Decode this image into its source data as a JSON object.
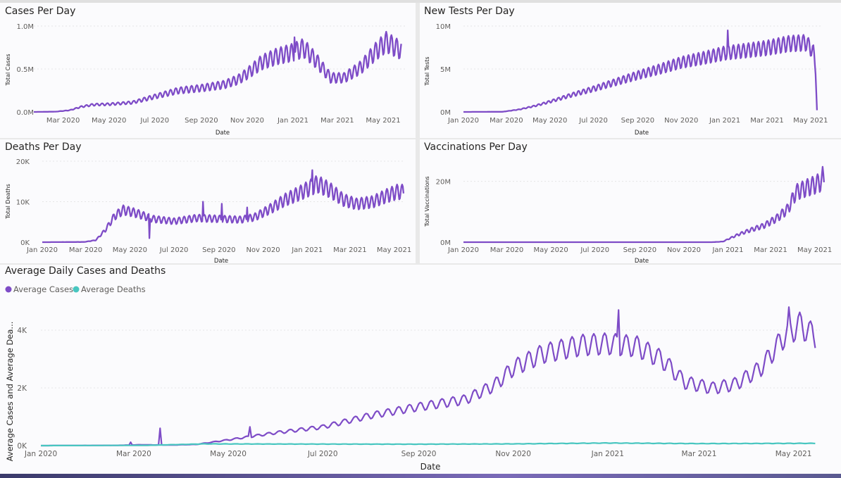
{
  "colors": {
    "purple": "#7e4cc7",
    "teal": "#48c6c0"
  },
  "chart_data": [
    {
      "id": "cases",
      "type": "line",
      "title": "Cases Per Day",
      "xlabel": "Date",
      "ylabel": "Total Cases",
      "x_ticks": [
        "Mar 2020",
        "May 2020",
        "Jul 2020",
        "Sep 2020",
        "Nov 2020",
        "Jan 2021",
        "Mar 2021",
        "May 2021"
      ],
      "x_tick_dates": [
        "2020-03-01",
        "2020-05-01",
        "2020-07-01",
        "2020-09-01",
        "2020-11-01",
        "2021-01-01",
        "2021-03-01",
        "2021-05-01"
      ],
      "y_ticks": [
        "0.0M",
        "0.5M",
        "1.0M"
      ],
      "y_tick_values": [
        0,
        500000,
        1000000
      ],
      "ylim": [
        0,
        1000000
      ],
      "xlim": [
        "2020-01-22",
        "2021-05-31"
      ],
      "series": [
        {
          "color": "#7e4cc7",
          "points": [
            [
              "2020-01-22",
              0
            ],
            [
              "2020-02-20",
              3000
            ],
            [
              "2020-03-10",
              20000
            ],
            [
              "2020-03-25",
              60000
            ],
            [
              "2020-04-10",
              85000
            ],
            [
              "2020-05-01",
              90000
            ],
            [
              "2020-06-01",
              110000
            ],
            [
              "2020-07-01",
              180000
            ],
            [
              "2020-08-01",
              250000
            ],
            [
              "2020-09-01",
              280000
            ],
            [
              "2020-10-01",
              320000
            ],
            [
              "2020-10-20",
              380000
            ],
            [
              "2020-11-01",
              450000
            ],
            [
              "2020-11-20",
              580000
            ],
            [
              "2020-12-10",
              650000
            ],
            [
              "2021-01-01",
              700000
            ],
            [
              "2021-01-15",
              750000
            ],
            [
              "2021-02-01",
              600000
            ],
            [
              "2021-02-20",
              400000
            ],
            [
              "2021-03-10",
              400000
            ],
            [
              "2021-04-01",
              520000
            ],
            [
              "2021-04-20",
              700000
            ],
            [
              "2021-05-05",
              820000
            ],
            [
              "2021-05-25",
              720000
            ]
          ],
          "weekly_amplitude": 0.28,
          "spikes": [
            [
              "2021-01-03",
              870000
            ]
          ]
        }
      ]
    },
    {
      "id": "tests",
      "type": "line",
      "title": "New Tests Per Day",
      "xlabel": "Date",
      "ylabel": "Total Tests",
      "x_ticks": [
        "Jan 2020",
        "Mar 2020",
        "May 2020",
        "Jul 2020",
        "Sep 2020",
        "Nov 2020",
        "Jan 2021",
        "Mar 2021",
        "May 2021"
      ],
      "x_tick_dates": [
        "2020-01-01",
        "2020-03-01",
        "2020-05-01",
        "2020-07-01",
        "2020-09-01",
        "2020-11-01",
        "2021-01-01",
        "2021-03-01",
        "2021-05-01"
      ],
      "y_ticks": [
        "0M",
        "5M",
        "10M"
      ],
      "y_tick_values": [
        0,
        5000000,
        10000000
      ],
      "ylim": [
        0,
        10000000
      ],
      "xlim": [
        "2020-01-01",
        "2021-05-16"
      ],
      "series": [
        {
          "color": "#7e4cc7",
          "points": [
            [
              "2020-01-01",
              0
            ],
            [
              "2020-02-25",
              20000
            ],
            [
              "2020-03-20",
              300000
            ],
            [
              "2020-04-10",
              700000
            ],
            [
              "2020-05-01",
              1200000
            ],
            [
              "2020-06-01",
              2000000
            ],
            [
              "2020-07-01",
              2700000
            ],
            [
              "2020-08-01",
              3500000
            ],
            [
              "2020-09-01",
              4300000
            ],
            [
              "2020-10-01",
              5000000
            ],
            [
              "2020-11-01",
              5800000
            ],
            [
              "2020-12-01",
              6300000
            ],
            [
              "2021-01-01",
              6900000
            ],
            [
              "2021-02-01",
              7200000
            ],
            [
              "2021-03-01",
              7500000
            ],
            [
              "2021-04-01",
              8000000
            ],
            [
              "2021-04-25",
              8100000
            ],
            [
              "2021-05-05",
              7000000
            ],
            [
              "2021-05-08",
              5000000
            ],
            [
              "2021-05-10",
              200000
            ]
          ],
          "weekly_amplitude": 0.22,
          "spikes": [
            [
              "2021-01-05",
              9500000
            ]
          ]
        }
      ]
    },
    {
      "id": "deaths",
      "type": "line",
      "title": "Deaths Per Day",
      "xlabel": "Date",
      "ylabel": "Total Deaths",
      "x_ticks": [
        "Jan 2020",
        "Mar 2020",
        "May 2020",
        "Jul 2020",
        "Sep 2020",
        "Nov 2020",
        "Jan 2021",
        "Mar 2021",
        "May 2021"
      ],
      "x_tick_dates": [
        "2020-01-01",
        "2020-03-01",
        "2020-05-01",
        "2020-07-01",
        "2020-09-01",
        "2020-11-01",
        "2021-01-01",
        "2021-03-01",
        "2021-05-01"
      ],
      "y_ticks": [
        "0K",
        "10K",
        "20K"
      ],
      "y_tick_values": [
        0,
        10000,
        20000
      ],
      "ylim": [
        0,
        20000
      ],
      "xlim": [
        "2020-01-01",
        "2021-05-16"
      ],
      "series": [
        {
          "color": "#7e4cc7",
          "points": [
            [
              "2020-01-01",
              0
            ],
            [
              "2020-02-28",
              50
            ],
            [
              "2020-03-15",
              500
            ],
            [
              "2020-03-28",
              3000
            ],
            [
              "2020-04-10",
              6500
            ],
            [
              "2020-04-22",
              8000
            ],
            [
              "2020-05-10",
              7200
            ],
            [
              "2020-06-01",
              5800
            ],
            [
              "2020-07-01",
              5200
            ],
            [
              "2020-08-01",
              6000
            ],
            [
              "2020-09-01",
              5800
            ],
            [
              "2020-10-01",
              5600
            ],
            [
              "2020-10-20",
              6200
            ],
            [
              "2020-11-10",
              8200
            ],
            [
              "2020-12-01",
              10500
            ],
            [
              "2020-12-25",
              12500
            ],
            [
              "2021-01-15",
              14500
            ],
            [
              "2021-02-01",
              13000
            ],
            [
              "2021-02-20",
              10500
            ],
            [
              "2021-03-10",
              9500
            ],
            [
              "2021-04-01",
              10000
            ],
            [
              "2021-04-20",
              11500
            ],
            [
              "2021-05-05",
              12500
            ],
            [
              "2021-05-14",
              12500
            ]
          ],
          "weekly_amplitude": 0.28,
          "spikes": [
            [
              "2020-08-10",
              10000
            ],
            [
              "2020-09-05",
              9500
            ],
            [
              "2020-10-10",
              8600
            ],
            [
              "2021-01-08",
              17800
            ],
            [
              "2020-05-28",
              1000
            ]
          ]
        }
      ]
    },
    {
      "id": "vaccinations",
      "type": "line",
      "title": "Vaccinations Per Day",
      "xlabel": "Date",
      "ylabel": "Total Vaccinations",
      "x_ticks": [
        "Jan 2020",
        "Mar 2020",
        "May 2020",
        "Jul 2020",
        "Sep 2020",
        "Nov 2020",
        "Jan 2021",
        "Mar 2021",
        "May 2021"
      ],
      "x_tick_dates": [
        "2020-01-01",
        "2020-03-01",
        "2020-05-01",
        "2020-07-01",
        "2020-09-01",
        "2020-11-01",
        "2021-01-01",
        "2021-03-01",
        "2021-05-01"
      ],
      "y_ticks": [
        "0M",
        "20M"
      ],
      "y_tick_values": [
        0,
        20000000
      ],
      "ylim": [
        0,
        25000000
      ],
      "xlim": [
        "2020-01-01",
        "2021-05-16"
      ],
      "series": [
        {
          "color": "#7e4cc7",
          "points": [
            [
              "2020-01-01",
              0
            ],
            [
              "2020-12-10",
              0
            ],
            [
              "2020-12-25",
              200000
            ],
            [
              "2021-01-15",
              2500000
            ],
            [
              "2021-02-01",
              4000000
            ],
            [
              "2021-02-20",
              5500000
            ],
            [
              "2021-03-10",
              8000000
            ],
            [
              "2021-03-25",
              11000000
            ],
            [
              "2021-04-05",
              16500000
            ],
            [
              "2021-04-20",
              18000000
            ],
            [
              "2021-05-01",
              19000000
            ],
            [
              "2021-05-10",
              20000000
            ],
            [
              "2021-05-14",
              20500000
            ]
          ],
          "weekly_amplitude": 0.3,
          "spikes": [
            [
              "2021-05-12",
              24800000
            ]
          ]
        }
      ]
    },
    {
      "id": "average",
      "type": "line",
      "title": "Average Daily Cases and Deaths",
      "xlabel": "Date",
      "ylabel": "Average Cases and Average Dea...",
      "x_ticks": [
        "Jan 2020",
        "Mar 2020",
        "May 2020",
        "Jul 2020",
        "Sep 2020",
        "Nov 2020",
        "Jan 2021",
        "Mar 2021",
        "May 2021"
      ],
      "x_tick_dates": [
        "2020-01-01",
        "2020-03-01",
        "2020-05-01",
        "2020-07-01",
        "2020-09-01",
        "2020-11-01",
        "2021-01-01",
        "2021-03-01",
        "2021-05-01"
      ],
      "y_ticks": [
        "0K",
        "2K",
        "4K"
      ],
      "y_tick_values": [
        0,
        2000,
        4000
      ],
      "ylim": [
        0,
        5000
      ],
      "xlim": [
        "2020-01-01",
        "2021-05-18"
      ],
      "series": [
        {
          "name": "Average Cases",
          "color": "#7e4cc7",
          "points": [
            [
              "2020-01-01",
              0
            ],
            [
              "2020-02-20",
              10
            ],
            [
              "2020-03-05",
              30
            ],
            [
              "2020-03-25",
              20
            ],
            [
              "2020-04-10",
              40
            ],
            [
              "2020-05-01",
              200
            ],
            [
              "2020-06-01",
              450
            ],
            [
              "2020-07-01",
              650
            ],
            [
              "2020-08-01",
              1050
            ],
            [
              "2020-09-01",
              1350
            ],
            [
              "2020-10-01",
              1600
            ],
            [
              "2020-10-20",
              2100
            ],
            [
              "2020-11-01",
              2700
            ],
            [
              "2020-11-20",
              3200
            ],
            [
              "2020-12-15",
              3500
            ],
            [
              "2021-01-01",
              3550
            ],
            [
              "2021-01-20",
              3450
            ],
            [
              "2021-02-05",
              3000
            ],
            [
              "2021-02-20",
              2200
            ],
            [
              "2021-03-10",
              2000
            ],
            [
              "2021-03-25",
              2150
            ],
            [
              "2021-04-10",
              2700
            ],
            [
              "2021-04-25",
              3800
            ],
            [
              "2021-05-05",
              4200
            ],
            [
              "2021-05-15",
              3800
            ]
          ],
          "weekly_amplitude": 0.2,
          "spikes": [
            [
              "2020-02-28",
              120
            ],
            [
              "2020-03-18",
              600
            ],
            [
              "2020-05-15",
              650
            ],
            [
              "2021-01-08",
              4700
            ],
            [
              "2021-04-28",
              4800
            ]
          ]
        },
        {
          "name": "Average Deaths",
          "color": "#48c6c0",
          "points": [
            [
              "2020-01-01",
              0
            ],
            [
              "2020-03-10",
              10
            ],
            [
              "2020-04-15",
              60
            ],
            [
              "2020-06-01",
              55
            ],
            [
              "2020-09-01",
              50
            ],
            [
              "2020-11-01",
              60
            ],
            [
              "2021-01-01",
              90
            ],
            [
              "2021-03-01",
              70
            ],
            [
              "2021-05-15",
              80
            ]
          ],
          "weekly_amplitude": 0.15,
          "spikes": []
        }
      ]
    }
  ]
}
